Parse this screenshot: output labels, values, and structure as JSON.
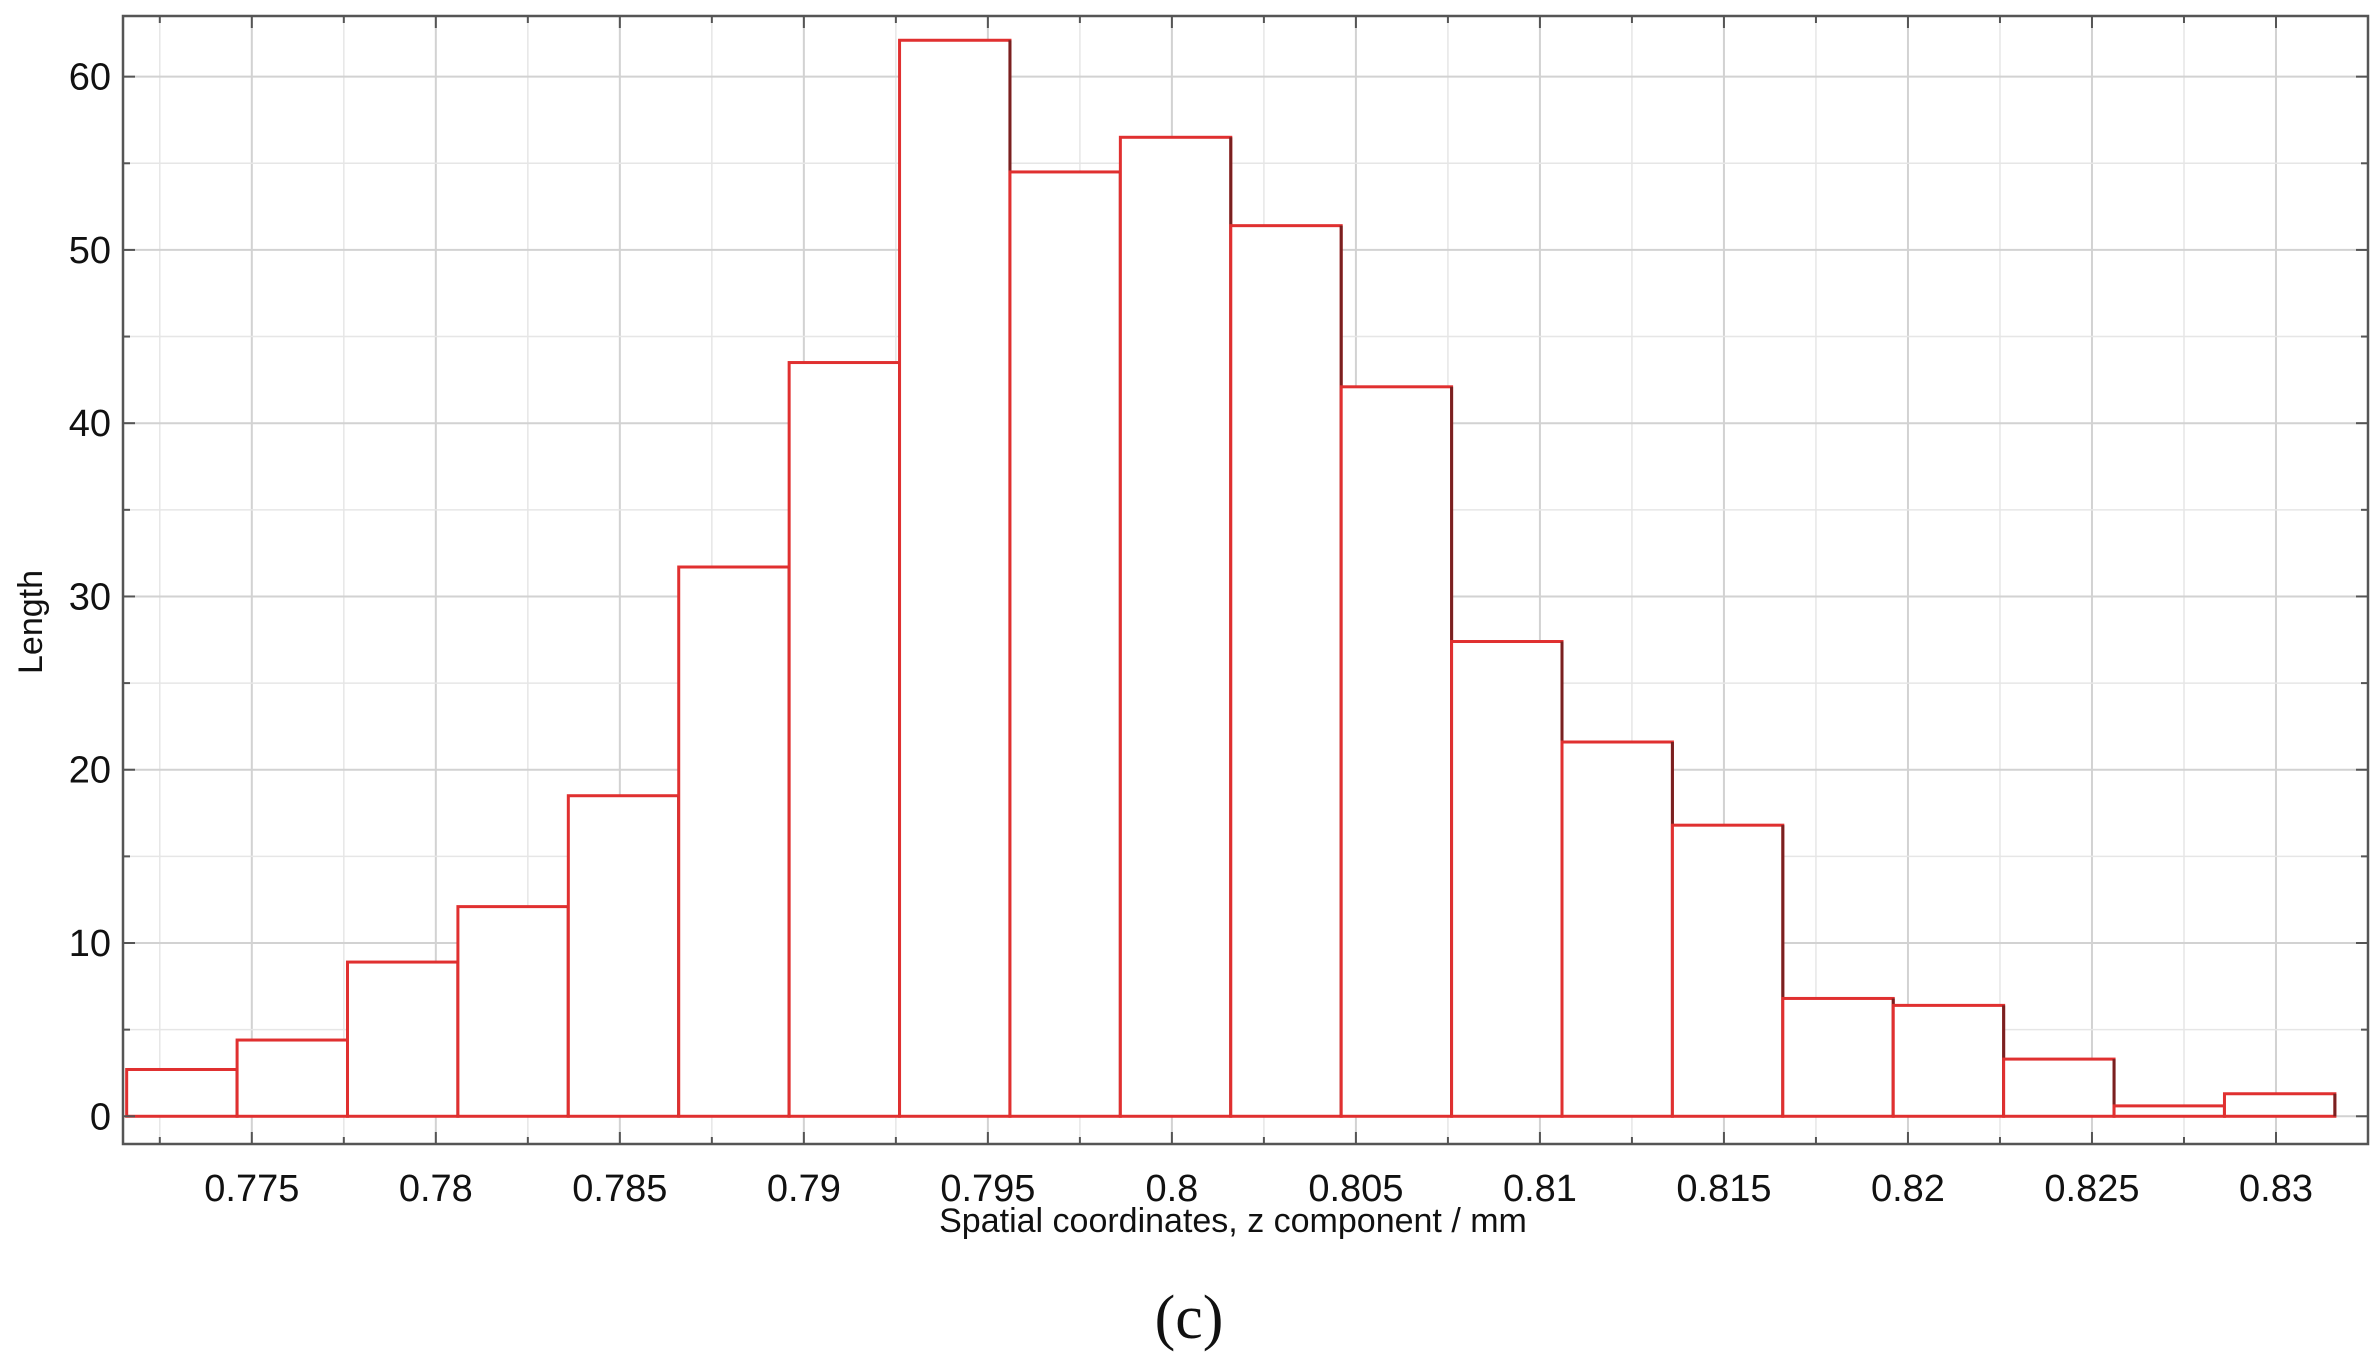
{
  "chart_data": {
    "type": "bar",
    "subtype": "histogram",
    "xlabel": "Spatial coordinates, z component / mm",
    "ylabel": "Length",
    "xlim": [
      0.7715,
      0.8325
    ],
    "ylim": [
      -1.6,
      63.5
    ],
    "xticks": [
      0.775,
      0.78,
      0.785,
      0.79,
      0.795,
      0.8,
      0.805,
      0.81,
      0.815,
      0.82,
      0.825,
      0.83
    ],
    "xtick_labels": [
      "0.775",
      "0.78",
      "0.785",
      "0.79",
      "0.795",
      "0.8",
      "0.805",
      "0.81",
      "0.815",
      "0.82",
      "0.825",
      "0.83"
    ],
    "yticks": [
      0,
      10,
      20,
      30,
      40,
      50,
      60
    ],
    "ytick_labels": [
      "0",
      "10",
      "20",
      "30",
      "40",
      "50",
      "60"
    ],
    "grid": true,
    "bin_edges": [
      0.7716,
      0.7746,
      0.7776,
      0.7806,
      0.7836,
      0.7866,
      0.7896,
      0.7926,
      0.7956,
      0.7986,
      0.8016,
      0.8046,
      0.8076,
      0.8106,
      0.8136,
      0.8166,
      0.8196,
      0.8226,
      0.8256,
      0.8286,
      0.8316
    ],
    "values": [
      2.7,
      4.4,
      8.9,
      12.1,
      18.5,
      31.7,
      43.5,
      62.1,
      54.5,
      56.5,
      51.4,
      42.1,
      27.4,
      21.6,
      16.8,
      6.8,
      6.4,
      3.3,
      0.6,
      1.3
    ],
    "bar_color": "#e03030",
    "bar_outline_dark": "#7a2020"
  },
  "caption": {
    "label": "(c)"
  }
}
